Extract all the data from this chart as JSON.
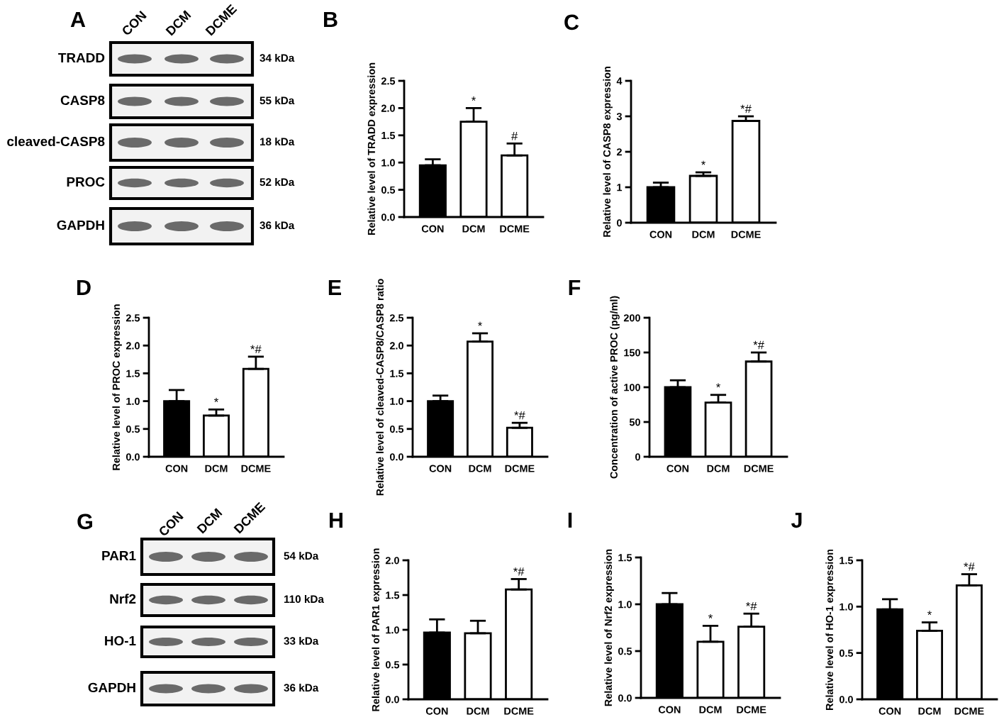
{
  "chart_data": [
    {
      "type": "other",
      "title": "A",
      "categories": [
        "CON",
        "DCM",
        "DCME"
      ],
      "y_categories": [
        "TRADD",
        "CASP8",
        "cleaved-CASP8",
        "PROC",
        "GAPDH"
      ],
      "y2_categories": [
        "34 kDa",
        "55 kDa",
        "18 kDa",
        "52 kDa",
        "36 kDa"
      ]
    },
    {
      "type": "bar",
      "title": "B",
      "categories": [
        "CON",
        "DCM",
        "DCME"
      ],
      "values": [
        0.95,
        1.75,
        1.13
      ],
      "colors": [
        "#000000",
        "#ffffff",
        "#ffffff"
      ],
      "errors": [
        [
          0.95,
          1.06
        ],
        [
          1.75,
          2.0
        ],
        [
          1.13,
          1.35
        ]
      ],
      "ylabel": "Relative level of TRADD expression",
      "ylim": [
        0,
        2.5
      ],
      "yticks": [
        {
          "value": 0,
          "label": "0.0"
        },
        0.5,
        {
          "value": 1,
          "label": "1.0"
        },
        1.5,
        {
          "value": 2,
          "label": "2.0"
        },
        2.5
      ],
      "annotations": [
        {
          "text": "*",
          "x": "DCM",
          "y": 2.0
        },
        {
          "text": "#",
          "x": "DCME",
          "y": 1.35
        }
      ]
    },
    {
      "type": "bar",
      "title": "C",
      "categories": [
        "CON",
        "DCM",
        "DCME"
      ],
      "values": [
        1.0,
        1.32,
        2.87
      ],
      "colors": [
        "#000000",
        "#ffffff",
        "#ffffff"
      ],
      "errors": [
        [
          1.0,
          1.13
        ],
        [
          1.32,
          1.42
        ],
        [
          2.87,
          3.0
        ]
      ],
      "ylabel": "Relative level of CASP8 expression",
      "ylim": [
        0,
        4
      ],
      "yticks": [
        0,
        1,
        2,
        3,
        4
      ],
      "annotations": [
        {
          "text": "*",
          "x": "DCM",
          "y": 1.42
        },
        {
          "text": "*#",
          "x": "DCME",
          "y": 3.0
        }
      ]
    },
    {
      "type": "bar",
      "title": "D",
      "categories": [
        "CON",
        "DCM",
        "DCME"
      ],
      "values": [
        1.0,
        0.74,
        1.58
      ],
      "colors": [
        "#000000",
        "#ffffff",
        "#ffffff"
      ],
      "errors": [
        [
          1.0,
          1.2
        ],
        [
          0.74,
          0.85
        ],
        [
          1.58,
          1.8
        ]
      ],
      "ylabel": "Relative level of PROC expression",
      "ylim": [
        0,
        2.5
      ],
      "yticks": [
        {
          "value": 0,
          "label": "0.0"
        },
        0.5,
        {
          "value": 1,
          "label": "1.0"
        },
        1.5,
        {
          "value": 2,
          "label": "2.0"
        },
        2.5
      ],
      "annotations": [
        {
          "text": "*",
          "x": "DCM",
          "y": 0.85
        },
        {
          "text": "*#",
          "x": "DCME",
          "y": 1.8
        }
      ]
    },
    {
      "type": "bar",
      "title": "E",
      "categories": [
        "CON",
        "DCM",
        "DCME"
      ],
      "values": [
        1.0,
        2.07,
        0.52
      ],
      "colors": [
        "#000000",
        "#ffffff",
        "#ffffff"
      ],
      "errors": [
        [
          1.0,
          1.1
        ],
        [
          2.07,
          2.22
        ],
        [
          0.52,
          0.61
        ]
      ],
      "ylabel": "Relative level of cleaved-CASP8/CASP8 ratio",
      "ylim": [
        0,
        2.5
      ],
      "yticks": [
        {
          "value": 0,
          "label": "0.0"
        },
        0.5,
        {
          "value": 1,
          "label": "1.0"
        },
        1.5,
        {
          "value": 2,
          "label": "2.0"
        },
        2.5
      ],
      "annotations": [
        {
          "text": "*",
          "x": "DCM",
          "y": 2.22
        },
        {
          "text": "*#",
          "x": "DCME",
          "y": 0.61
        }
      ]
    },
    {
      "type": "bar",
      "title": "F",
      "categories": [
        "CON",
        "DCM",
        "DCME"
      ],
      "values": [
        100,
        78,
        137
      ],
      "colors": [
        "#000000",
        "#ffffff",
        "#ffffff"
      ],
      "errors": [
        [
          100,
          110
        ],
        [
          78,
          89
        ],
        [
          137,
          150
        ]
      ],
      "ylabel": "Concentration of active PROC (pg/ml)",
      "ylim": [
        0,
        200
      ],
      "yticks": [
        0,
        50,
        100,
        150,
        200
      ],
      "annotations": [
        {
          "text": "*",
          "x": "DCM",
          "y": 89
        },
        {
          "text": "*#",
          "x": "DCME",
          "y": 150
        }
      ]
    },
    {
      "type": "other",
      "title": "G",
      "categories": [
        "CON",
        "DCM",
        "DCME"
      ],
      "y_categories": [
        "PAR1",
        "Nrf2",
        "HO-1",
        "GAPDH"
      ],
      "y2_categories": [
        "54 kDa",
        "110 kDa",
        "33 kDa",
        "36 kDa"
      ]
    },
    {
      "type": "bar",
      "title": "H",
      "categories": [
        "CON",
        "DCM",
        "DCME"
      ],
      "values": [
        0.96,
        0.95,
        1.58
      ],
      "colors": [
        "#000000",
        "#ffffff",
        "#ffffff"
      ],
      "errors": [
        [
          0.96,
          1.15
        ],
        [
          0.95,
          1.13
        ],
        [
          1.58,
          1.73
        ]
      ],
      "ylabel": "Relative level of PAR1 expression",
      "ylim": [
        0,
        2.0
      ],
      "yticks": [
        {
          "value": 0,
          "label": "0.0"
        },
        0.5,
        {
          "value": 1,
          "label": "1.0"
        },
        1.5,
        {
          "value": 2,
          "label": "2.0"
        }
      ],
      "annotations": [
        {
          "text": "*#",
          "x": "DCME",
          "y": 1.73
        }
      ]
    },
    {
      "type": "bar",
      "title": "I",
      "categories": [
        "CON",
        "DCM",
        "DCME"
      ],
      "values": [
        1.0,
        0.6,
        0.76
      ],
      "colors": [
        "#000000",
        "#ffffff",
        "#ffffff"
      ],
      "errors": [
        [
          1.0,
          1.12
        ],
        [
          0.6,
          0.77
        ],
        [
          0.76,
          0.9
        ]
      ],
      "ylabel": "Relative level of Nrf2 expression",
      "ylim": [
        0,
        1.5
      ],
      "yticks": [
        {
          "value": 0,
          "label": "0.0"
        },
        0.5,
        {
          "value": 1,
          "label": "1.0"
        },
        1.5
      ],
      "annotations": [
        {
          "text": "*",
          "x": "DCM",
          "y": 0.77
        },
        {
          "text": "*#",
          "x": "DCME",
          "y": 0.9
        }
      ]
    },
    {
      "type": "bar",
      "title": "J",
      "categories": [
        "CON",
        "DCM",
        "DCME"
      ],
      "values": [
        0.97,
        0.74,
        1.23
      ],
      "colors": [
        "#000000",
        "#ffffff",
        "#ffffff"
      ],
      "errors": [
        [
          0.97,
          1.08
        ],
        [
          0.74,
          0.83
        ],
        [
          1.23,
          1.35
        ]
      ],
      "ylabel": "Relative level of HO-1 expression",
      "ylim": [
        0,
        1.5
      ],
      "yticks": [
        {
          "value": 0,
          "label": "0.0"
        },
        0.5,
        {
          "value": 1,
          "label": "1.0"
        },
        1.5
      ],
      "annotations": [
        {
          "text": "*",
          "x": "DCM",
          "y": 0.83
        },
        {
          "text": "*#",
          "x": "DCME",
          "y": 1.35
        }
      ]
    }
  ]
}
